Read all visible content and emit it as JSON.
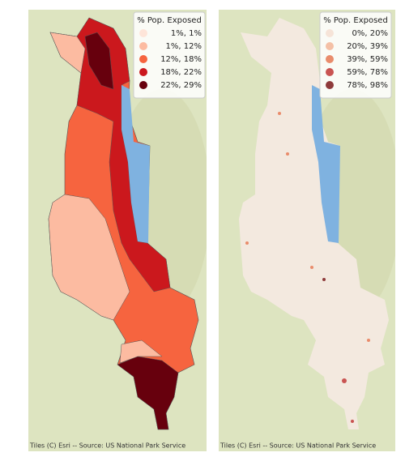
{
  "panels": [
    {
      "legend": {
        "title": "% Pop. Exposed",
        "entries": [
          {
            "label": "1%,  1%",
            "color": "#fee5d9"
          },
          {
            "label": "1%, 12%",
            "color": "#fcbba1"
          },
          {
            "label": "12%, 18%",
            "color": "#f6643f"
          },
          {
            "label": "18%, 22%",
            "color": "#cb181d"
          },
          {
            "label": "22%, 29%",
            "color": "#67000d"
          }
        ]
      },
      "attribution": "Tiles (C) Esri -- Source: US National Park Service"
    },
    {
      "legend": {
        "title": "% Pop. Exposed",
        "entries": [
          {
            "label": "0%, 20%",
            "color": "#f6e4d8"
          },
          {
            "label": "20%, 39%",
            "color": "#f4c0a6"
          },
          {
            "label": "39%, 59%",
            "color": "#e98c6c"
          },
          {
            "label": "59%, 78%",
            "color": "#c95452"
          },
          {
            "label": "78%, 98%",
            "color": "#8e3b3b"
          }
        ]
      },
      "attribution": "Tiles (C) Esri -- Source: US National Park Service"
    }
  ]
}
